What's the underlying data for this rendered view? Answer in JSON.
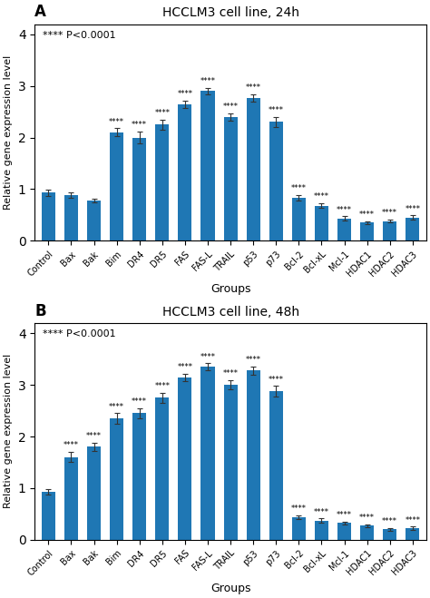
{
  "chart_data": [
    {
      "type": "bar",
      "panel_label": "A",
      "title": "HCCLM3 cell line, 24h",
      "subtitle": "**** P<0.0001",
      "categories": [
        "Control",
        "Bax",
        "Bak",
        "Bim",
        "DR4",
        "DR5",
        "FAS",
        "FAS-L",
        "TRAIL",
        "p53",
        "p73",
        "Bcl-2",
        "Bcl-xL",
        "Mcl-1",
        "HDAC1",
        "HDAC2",
        "HDAC3"
      ],
      "values": [
        0.93,
        0.88,
        0.78,
        2.1,
        2.0,
        2.25,
        2.65,
        2.9,
        2.4,
        2.77,
        2.3,
        0.83,
        0.68,
        0.43,
        0.35,
        0.38,
        0.45
      ],
      "errors": [
        0.06,
        0.05,
        0.04,
        0.08,
        0.12,
        0.1,
        0.07,
        0.06,
        0.07,
        0.07,
        0.1,
        0.06,
        0.05,
        0.04,
        0.03,
        0.03,
        0.04
      ],
      "annotations": [
        null,
        null,
        null,
        "****",
        "****",
        "****",
        "****",
        "****",
        "****",
        "****",
        "****",
        "****",
        "****",
        "****",
        "****",
        "****",
        "****"
      ],
      "ylim": [
        0,
        4.2
      ],
      "yticks": [
        0,
        1,
        2,
        3,
        4
      ],
      "ylabel": "Relative gene expression level",
      "xlabel": "Groups"
    },
    {
      "type": "bar",
      "panel_label": "B",
      "title": "HCCLM3 cell line, 48h",
      "subtitle": "**** P<0.0001",
      "categories": [
        "Control",
        "Bax",
        "Bak",
        "Bim",
        "DR4",
        "DR5",
        "FAS",
        "FAS-L",
        "TRAIL",
        "p53",
        "p73",
        "Bcl-2",
        "Bcl-xL",
        "Mcl-1",
        "HDAC1",
        "HDAC2",
        "HDAC3"
      ],
      "values": [
        0.93,
        1.6,
        1.8,
        2.35,
        2.45,
        2.75,
        3.15,
        3.35,
        3.0,
        3.28,
        2.88,
        0.43,
        0.37,
        0.32,
        0.27,
        0.2,
        0.22
      ],
      "errors": [
        0.05,
        0.1,
        0.08,
        0.1,
        0.1,
        0.1,
        0.07,
        0.07,
        0.09,
        0.08,
        0.1,
        0.04,
        0.04,
        0.03,
        0.03,
        0.03,
        0.03
      ],
      "annotations": [
        null,
        "****",
        "****",
        "****",
        "****",
        "****",
        "****",
        "****",
        "****",
        "****",
        "****",
        "****",
        "****",
        "****",
        "****",
        "****",
        "****"
      ],
      "ylim": [
        0,
        4.2
      ],
      "yticks": [
        0,
        1,
        2,
        3,
        4
      ],
      "ylabel": "Relative gene expression level",
      "xlabel": "Groups"
    }
  ]
}
